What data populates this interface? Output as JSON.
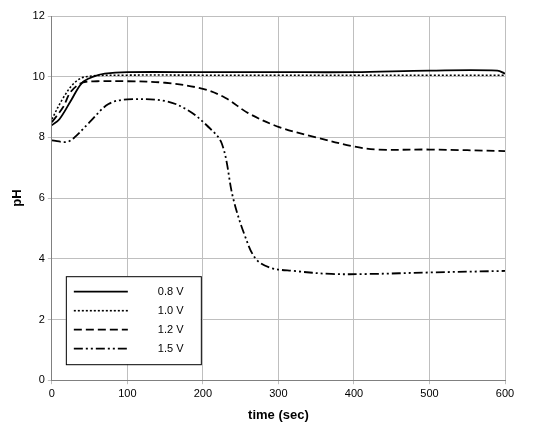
{
  "chart_data": {
    "type": "line",
    "x_label": "time (sec)",
    "y_label": "pH",
    "xlim": [
      0,
      600
    ],
    "xticks": [
      0,
      100,
      200,
      300,
      400,
      500,
      600
    ],
    "ylim": [
      0,
      12
    ],
    "yticks": [
      0,
      2,
      4,
      6,
      8,
      10,
      12
    ],
    "grid": true,
    "legend": "lower left",
    "series": [
      {
        "name": "0.8 V",
        "color": "#000000",
        "line_style": "solid",
        "x": [
          0,
          10,
          25,
          40,
          55,
          70,
          100,
          200,
          300,
          400,
          500,
          590,
          600
        ],
        "values": [
          8.4,
          8.6,
          9.2,
          9.8,
          10.0,
          10.1,
          10.15,
          10.15,
          10.15,
          10.15,
          10.2,
          10.2,
          10.1
        ]
      },
      {
        "name": "1.0 V",
        "color": "#000000",
        "line_style": "dotted",
        "x": [
          0,
          15,
          30,
          45,
          100,
          200,
          300,
          400,
          500,
          600
        ],
        "values": [
          8.6,
          9.3,
          9.8,
          10.0,
          10.05,
          10.05,
          10.05,
          10.05,
          10.05,
          10.05
        ]
      },
      {
        "name": "1.2 V",
        "color": "#000000",
        "line_style": "dashed",
        "x": [
          0,
          15,
          25,
          40,
          60,
          100,
          150,
          200,
          230,
          260,
          300,
          350,
          400,
          430,
          500,
          600
        ],
        "values": [
          8.5,
          9.0,
          9.5,
          9.8,
          9.85,
          9.85,
          9.8,
          9.6,
          9.3,
          8.8,
          8.35,
          8.0,
          7.7,
          7.6,
          7.6,
          7.55
        ]
      },
      {
        "name": "1.5 V",
        "color": "#000000",
        "line_style": "dashdot",
        "x": [
          0,
          20,
          30,
          50,
          75,
          100,
          150,
          180,
          205,
          225,
          240,
          255,
          270,
          290,
          320,
          370,
          420,
          500,
          600
        ],
        "values": [
          7.9,
          7.85,
          8.0,
          8.5,
          9.1,
          9.25,
          9.2,
          8.9,
          8.4,
          7.8,
          6.0,
          4.8,
          4.0,
          3.7,
          3.6,
          3.5,
          3.5,
          3.55,
          3.6
        ]
      }
    ]
  }
}
